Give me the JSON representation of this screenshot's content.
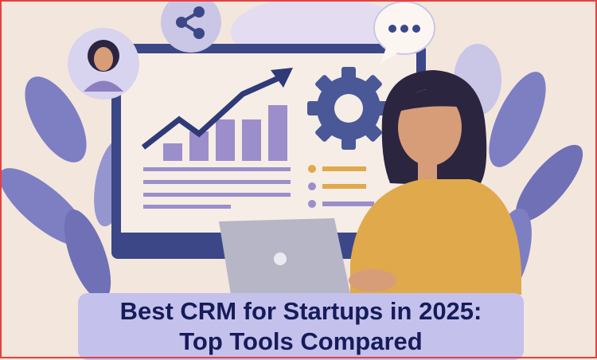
{
  "title": {
    "line1": "Best CRM for Startups in 2025:",
    "line2": "Top Tools Compared"
  },
  "colors": {
    "background": "#f3e6dd",
    "border": "#e8403f",
    "title_box": "#c4c1ec",
    "title_text": "#161c5a",
    "navy": "#3b4787",
    "purple": "#9b8ecb",
    "sweater": "#e0a94c"
  },
  "icons": [
    "share-icon",
    "chat-bubble-icon",
    "gear-icon",
    "trend-arrow-icon",
    "avatar-icon",
    "laptop-logo-icon"
  ]
}
